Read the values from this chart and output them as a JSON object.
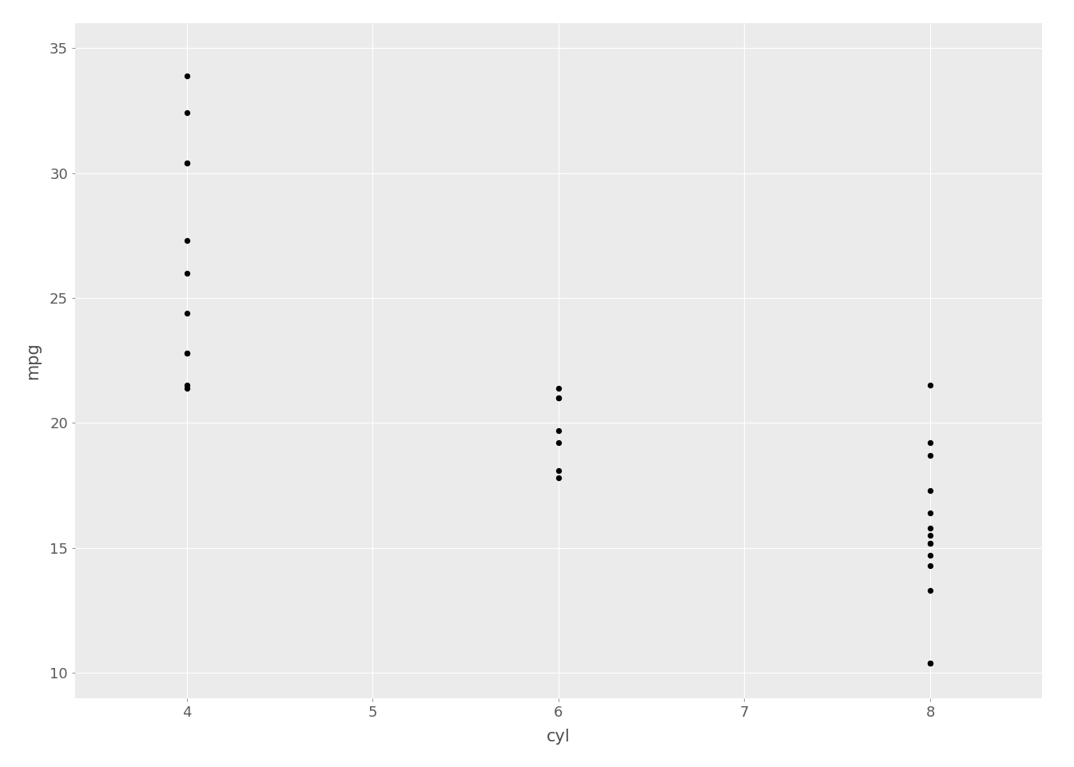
{
  "cyl": [
    4,
    4,
    4,
    4,
    4,
    4,
    4,
    4,
    4,
    4,
    4,
    6,
    6,
    6,
    6,
    6,
    6,
    6,
    8,
    8,
    8,
    8,
    8,
    8,
    8,
    8,
    8,
    8,
    8,
    8,
    8,
    8
  ],
  "mpg": [
    22.8,
    24.4,
    22.8,
    32.4,
    30.4,
    33.9,
    21.5,
    27.3,
    26.0,
    30.4,
    21.4,
    21.0,
    21.0,
    21.4,
    18.1,
    19.2,
    17.8,
    19.7,
    18.7,
    14.3,
    16.4,
    17.3,
    15.2,
    10.4,
    10.4,
    14.7,
    21.5,
    15.5,
    15.2,
    13.3,
    19.2,
    15.8
  ],
  "xlabel": "cyl",
  "ylabel": "mpg",
  "xlim": [
    3.4,
    8.6
  ],
  "ylim": [
    9.0,
    36.0
  ],
  "xticks": [
    4,
    5,
    6,
    7,
    8
  ],
  "yticks": [
    10,
    15,
    20,
    25,
    30,
    35
  ],
  "plot_bg_color": "#EBEBEB",
  "fig_bg_color": "#FFFFFF",
  "point_color": "#000000",
  "point_size": 18,
  "grid_color": "#FFFFFF",
  "axis_label_color": "#4D4D4D",
  "tick_label_color": "#595959",
  "xlabel_fontsize": 15,
  "ylabel_fontsize": 15,
  "tick_fontsize": 13
}
